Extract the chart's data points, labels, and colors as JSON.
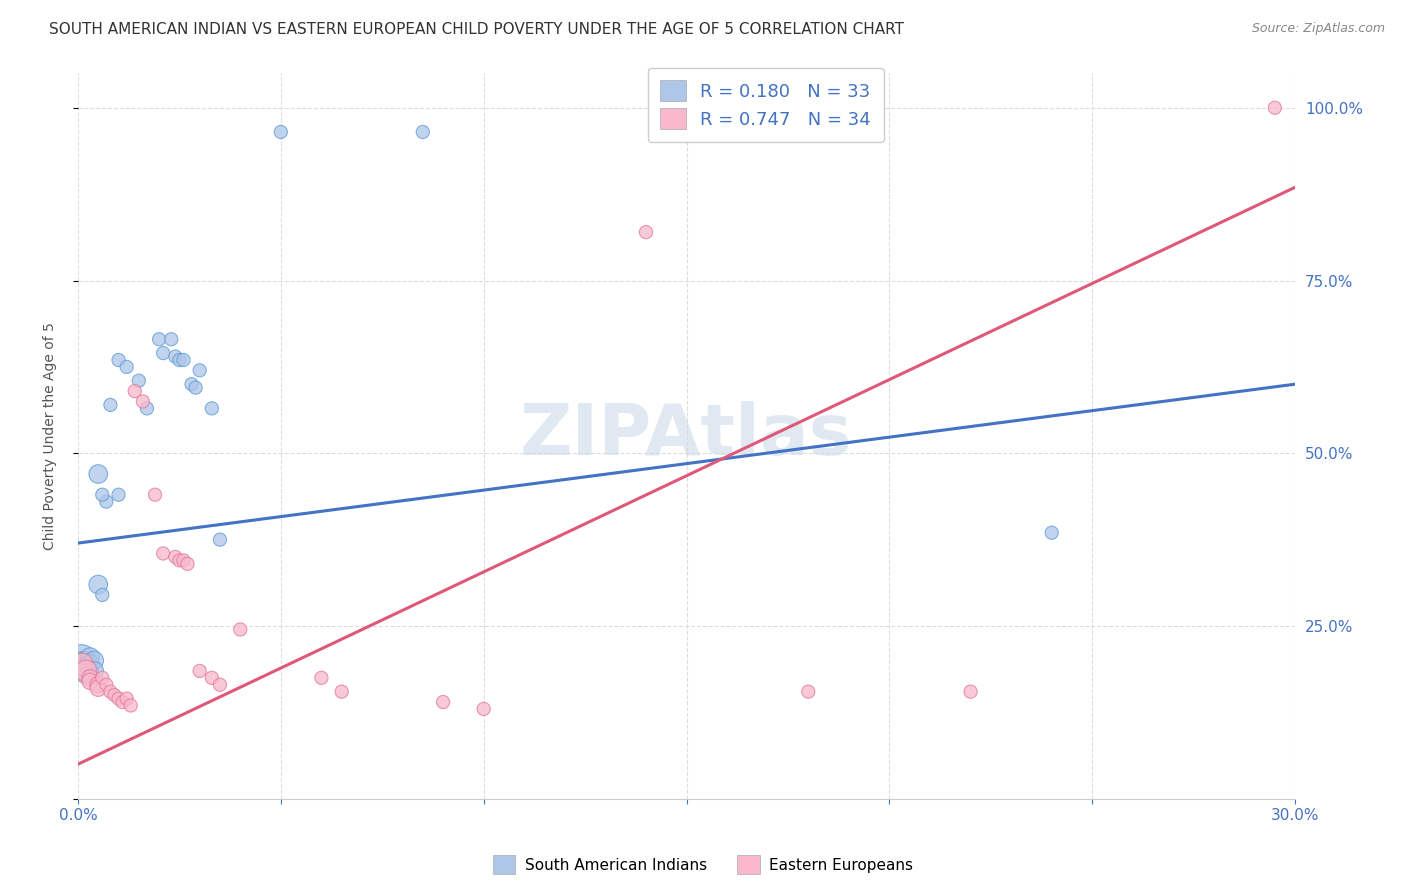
{
  "title": "SOUTH AMERICAN INDIAN VS EASTERN EUROPEAN CHILD POVERTY UNDER THE AGE OF 5 CORRELATION CHART",
  "source": "Source: ZipAtlas.com",
  "ylabel": "Child Poverty Under the Age of 5",
  "xlim": [
    0.0,
    0.3
  ],
  "ylim": [
    0.0,
    1.05
  ],
  "xtick_pos": [
    0.0,
    0.05,
    0.1,
    0.15,
    0.2,
    0.25,
    0.3
  ],
  "xtick_labels": [
    "0.0%",
    "",
    "",
    "",
    "",
    "",
    "30.0%"
  ],
  "ytick_pos": [
    0.0,
    0.25,
    0.5,
    0.75,
    1.0
  ],
  "ytick_labels": [
    "",
    "25.0%",
    "50.0%",
    "75.0%",
    "100.0%"
  ],
  "blue_R": "0.180",
  "blue_N": "33",
  "pink_R": "0.747",
  "pink_N": "34",
  "legend_label_blue": "South American Indians",
  "legend_label_pink": "Eastern Europeans",
  "blue_fill": "#aec6e8",
  "pink_fill": "#f9b8cb",
  "blue_edge": "#5b9bd5",
  "pink_edge": "#e07898",
  "blue_line": "#4472c4",
  "pink_line": "#e05878",
  "watermark": "ZIPAtlas",
  "blue_scatter": [
    [
      0.001,
      0.205
    ],
    [
      0.001,
      0.195
    ],
    [
      0.002,
      0.195
    ],
    [
      0.002,
      0.185
    ],
    [
      0.003,
      0.205
    ],
    [
      0.003,
      0.195
    ],
    [
      0.004,
      0.2
    ],
    [
      0.004,
      0.185
    ],
    [
      0.005,
      0.31
    ],
    [
      0.006,
      0.295
    ],
    [
      0.007,
      0.43
    ],
    [
      0.008,
      0.57
    ],
    [
      0.01,
      0.635
    ],
    [
      0.012,
      0.625
    ],
    [
      0.015,
      0.605
    ],
    [
      0.017,
      0.565
    ],
    [
      0.02,
      0.665
    ],
    [
      0.021,
      0.645
    ],
    [
      0.023,
      0.665
    ],
    [
      0.024,
      0.64
    ],
    [
      0.025,
      0.635
    ],
    [
      0.026,
      0.635
    ],
    [
      0.028,
      0.6
    ],
    [
      0.029,
      0.595
    ],
    [
      0.03,
      0.62
    ],
    [
      0.033,
      0.565
    ],
    [
      0.035,
      0.375
    ],
    [
      0.05,
      0.965
    ],
    [
      0.085,
      0.965
    ],
    [
      0.24,
      0.385
    ],
    [
      0.005,
      0.47
    ],
    [
      0.006,
      0.44
    ],
    [
      0.01,
      0.44
    ]
  ],
  "pink_scatter": [
    [
      0.001,
      0.195
    ],
    [
      0.002,
      0.185
    ],
    [
      0.003,
      0.175
    ],
    [
      0.003,
      0.17
    ],
    [
      0.005,
      0.165
    ],
    [
      0.005,
      0.16
    ],
    [
      0.006,
      0.175
    ],
    [
      0.007,
      0.165
    ],
    [
      0.008,
      0.155
    ],
    [
      0.009,
      0.15
    ],
    [
      0.01,
      0.145
    ],
    [
      0.011,
      0.14
    ],
    [
      0.012,
      0.145
    ],
    [
      0.013,
      0.135
    ],
    [
      0.014,
      0.59
    ],
    [
      0.016,
      0.575
    ],
    [
      0.019,
      0.44
    ],
    [
      0.021,
      0.355
    ],
    [
      0.024,
      0.35
    ],
    [
      0.025,
      0.345
    ],
    [
      0.026,
      0.345
    ],
    [
      0.027,
      0.34
    ],
    [
      0.03,
      0.185
    ],
    [
      0.033,
      0.175
    ],
    [
      0.035,
      0.165
    ],
    [
      0.04,
      0.245
    ],
    [
      0.06,
      0.175
    ],
    [
      0.065,
      0.155
    ],
    [
      0.09,
      0.14
    ],
    [
      0.1,
      0.13
    ],
    [
      0.14,
      0.82
    ],
    [
      0.18,
      0.155
    ],
    [
      0.22,
      0.155
    ],
    [
      0.295,
      1.0
    ]
  ],
  "blue_line_x0": 0.0,
  "blue_line_x1": 0.3,
  "blue_line_y0": 0.37,
  "blue_line_y1": 0.6,
  "pink_line_x0": 0.0,
  "pink_line_x1": 0.3,
  "pink_line_y0": 0.05,
  "pink_line_y1": 0.885,
  "grid_color": "#dddddd",
  "bg_color": "#ffffff",
  "title_color": "#333333",
  "axis_color": "#4472c4",
  "tick_color": "#4472c4",
  "title_fontsize": 11,
  "axis_label_fontsize": 10,
  "tick_fontsize": 11,
  "legend_fontsize": 13
}
